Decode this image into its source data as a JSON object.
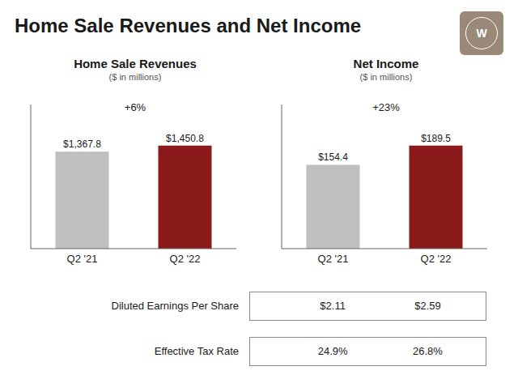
{
  "title": "Home Sale Revenues and Net Income",
  "annotations": [
    "W"
  ],
  "chart_data": [
    {
      "type": "bar",
      "title": "Home Sale Revenues",
      "subtitle": "($ in millions)",
      "categories": [
        "Q2 '21",
        "Q2 '22"
      ],
      "values": [
        1367.8,
        1450.8
      ],
      "value_labels": [
        "$1,367.8",
        "$1,450.8"
      ],
      "colors": [
        "#c0bfbf",
        "#8b1a1a"
      ],
      "data_labels": true,
      "annotations": [
        "+6%"
      ],
      "ylim": [
        0,
        2031.12
      ],
      "tick_labels": "x",
      "grid": false
    },
    {
      "type": "bar",
      "title": "Net Income",
      "subtitle": "($ in millions)",
      "categories": [
        "Q2 '21",
        "Q2 '22"
      ],
      "values": [
        154.4,
        189.5
      ],
      "value_labels": [
        "$154.4",
        "$189.5"
      ],
      "colors": [
        "#c0bfbf",
        "#8b1a1a"
      ],
      "data_labels": true,
      "annotations": [
        "+23%"
      ],
      "ylim": [
        0,
        265.3
      ],
      "tick_labels": "x",
      "grid": false
    }
  ],
  "table": {
    "rows": [
      {
        "label": "Diluted Earnings Per Share",
        "values": [
          2.11,
          2.59
        ],
        "value_labels": [
          "$2.11",
          "$2.59"
        ]
      },
      {
        "label": "Effective Tax Rate",
        "values": [
          24.9,
          26.8
        ],
        "value_labels": [
          "24.9%",
          "26.8%"
        ]
      }
    ]
  }
}
